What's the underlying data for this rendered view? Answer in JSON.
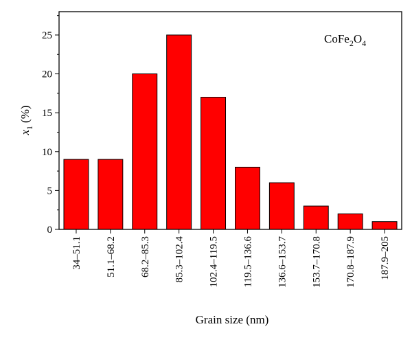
{
  "chart_data": {
    "type": "bar",
    "categories": [
      "34–51.1",
      "51.1–68.2",
      "68.2–85.3",
      "85.3–102.4",
      "102.4–119.5",
      "119.5–136.6",
      "136.6–153.7",
      "153.7–170.8",
      "170.8–187.9",
      "187.9–205"
    ],
    "values": [
      9,
      9,
      20,
      25,
      17,
      8,
      6,
      3,
      2,
      1
    ],
    "title": "",
    "xlabel": "Grain size (nm)",
    "ylabel": {
      "var": "x",
      "sub": "1",
      "unit": "(%)"
    },
    "ylim": [
      0,
      28
    ],
    "yticks": [
      0,
      5,
      10,
      15,
      20,
      25
    ],
    "annotation": {
      "base1": "CoFe",
      "sub1": "2",
      "base2": "O",
      "sub2": "4"
    },
    "bar_color": "#ff0000",
    "bar_edge": "#000000",
    "grid": false
  }
}
